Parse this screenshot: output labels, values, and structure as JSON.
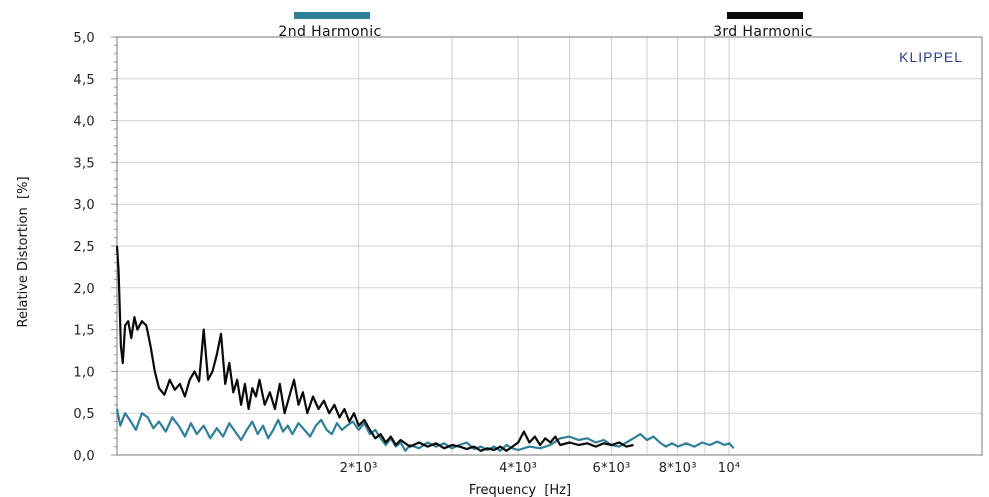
{
  "chart_data": {
    "type": "line",
    "title": "",
    "brand": "KLIPPEL",
    "xlabel": "Frequency  [Hz]",
    "ylabel": "Relative Distortion  [%]",
    "xscale": "log",
    "xlim": [
      700,
      30000
    ],
    "ylim": [
      0,
      5
    ],
    "grid": true,
    "legend_position": "top",
    "y_ticks": [
      {
        "value": 0.0,
        "label": "0,0"
      },
      {
        "value": 0.5,
        "label": "0,5"
      },
      {
        "value": 1.0,
        "label": "1,0"
      },
      {
        "value": 1.5,
        "label": "1,5"
      },
      {
        "value": 2.0,
        "label": "2,0"
      },
      {
        "value": 2.5,
        "label": "2,5"
      },
      {
        "value": 3.0,
        "label": "3,0"
      },
      {
        "value": 3.5,
        "label": "3,5"
      },
      {
        "value": 4.0,
        "label": "4,0"
      },
      {
        "value": 4.5,
        "label": "4,5"
      },
      {
        "value": 5.0,
        "label": "5,0"
      }
    ],
    "x_ticks": [
      {
        "value": 2000,
        "label": "2*10³"
      },
      {
        "value": 4000,
        "label": "4*10³"
      },
      {
        "value": 6000,
        "label": "6*10³"
      },
      {
        "value": 8000,
        "label": "8*10³"
      },
      {
        "value": 10000,
        "label": "10⁴"
      }
    ],
    "x_gridlines": [
      2000,
      3000,
      4000,
      5000,
      6000,
      7000,
      8000,
      9000,
      10000
    ],
    "series": [
      {
        "name": "2nd Harmonic",
        "color": "#2f7f98",
        "points": [
          [
            700,
            0.55
          ],
          [
            710,
            0.35
          ],
          [
            725,
            0.5
          ],
          [
            740,
            0.42
          ],
          [
            760,
            0.3
          ],
          [
            780,
            0.5
          ],
          [
            800,
            0.45
          ],
          [
            820,
            0.32
          ],
          [
            840,
            0.4
          ],
          [
            865,
            0.28
          ],
          [
            890,
            0.45
          ],
          [
            915,
            0.35
          ],
          [
            940,
            0.22
          ],
          [
            965,
            0.38
          ],
          [
            990,
            0.25
          ],
          [
            1020,
            0.35
          ],
          [
            1050,
            0.2
          ],
          [
            1080,
            0.32
          ],
          [
            1110,
            0.22
          ],
          [
            1140,
            0.38
          ],
          [
            1170,
            0.28
          ],
          [
            1200,
            0.18
          ],
          [
            1230,
            0.3
          ],
          [
            1260,
            0.4
          ],
          [
            1290,
            0.25
          ],
          [
            1320,
            0.35
          ],
          [
            1350,
            0.2
          ],
          [
            1380,
            0.3
          ],
          [
            1410,
            0.42
          ],
          [
            1440,
            0.28
          ],
          [
            1470,
            0.35
          ],
          [
            1500,
            0.25
          ],
          [
            1540,
            0.38
          ],
          [
            1580,
            0.3
          ],
          [
            1620,
            0.22
          ],
          [
            1660,
            0.35
          ],
          [
            1700,
            0.42
          ],
          [
            1740,
            0.3
          ],
          [
            1780,
            0.25
          ],
          [
            1820,
            0.38
          ],
          [
            1860,
            0.3
          ],
          [
            1900,
            0.35
          ],
          [
            1950,
            0.4
          ],
          [
            2000,
            0.3
          ],
          [
            2050,
            0.38
          ],
          [
            2100,
            0.25
          ],
          [
            2150,
            0.3
          ],
          [
            2200,
            0.2
          ],
          [
            2250,
            0.12
          ],
          [
            2300,
            0.2
          ],
          [
            2350,
            0.1
          ],
          [
            2400,
            0.15
          ],
          [
            2450,
            0.05
          ],
          [
            2500,
            0.12
          ],
          [
            2600,
            0.08
          ],
          [
            2700,
            0.15
          ],
          [
            2800,
            0.1
          ],
          [
            2900,
            0.14
          ],
          [
            3000,
            0.08
          ],
          [
            3100,
            0.12
          ],
          [
            3200,
            0.15
          ],
          [
            3300,
            0.07
          ],
          [
            3400,
            0.1
          ],
          [
            3500,
            0.06
          ],
          [
            3600,
            0.1
          ],
          [
            3700,
            0.05
          ],
          [
            3800,
            0.12
          ],
          [
            3900,
            0.08
          ],
          [
            4000,
            0.06
          ],
          [
            4200,
            0.1
          ],
          [
            4400,
            0.08
          ],
          [
            4600,
            0.12
          ],
          [
            4800,
            0.2
          ],
          [
            5000,
            0.22
          ],
          [
            5200,
            0.18
          ],
          [
            5400,
            0.2
          ],
          [
            5600,
            0.15
          ],
          [
            5800,
            0.18
          ],
          [
            6000,
            0.12
          ],
          [
            6200,
            0.1
          ],
          [
            6400,
            0.15
          ],
          [
            6600,
            0.2
          ],
          [
            6800,
            0.25
          ],
          [
            7000,
            0.18
          ],
          [
            7200,
            0.22
          ],
          [
            7400,
            0.15
          ],
          [
            7600,
            0.1
          ],
          [
            7800,
            0.14
          ],
          [
            8000,
            0.1
          ],
          [
            8300,
            0.14
          ],
          [
            8600,
            0.1
          ],
          [
            8900,
            0.15
          ],
          [
            9200,
            0.12
          ],
          [
            9500,
            0.16
          ],
          [
            9800,
            0.12
          ],
          [
            10000,
            0.14
          ],
          [
            10200,
            0.08
          ]
        ]
      },
      {
        "name": "3rd Harmonic",
        "color": "#0a0a0a",
        "points": [
          [
            700,
            2.5
          ],
          [
            705,
            2.2
          ],
          [
            712,
            1.3
          ],
          [
            718,
            1.1
          ],
          [
            725,
            1.55
          ],
          [
            735,
            1.6
          ],
          [
            745,
            1.4
          ],
          [
            755,
            1.65
          ],
          [
            765,
            1.5
          ],
          [
            780,
            1.6
          ],
          [
            795,
            1.55
          ],
          [
            810,
            1.3
          ],
          [
            825,
            1.0
          ],
          [
            840,
            0.8
          ],
          [
            860,
            0.72
          ],
          [
            880,
            0.9
          ],
          [
            900,
            0.78
          ],
          [
            920,
            0.85
          ],
          [
            940,
            0.7
          ],
          [
            960,
            0.9
          ],
          [
            980,
            1.0
          ],
          [
            1000,
            0.88
          ],
          [
            1020,
            1.5
          ],
          [
            1040,
            0.9
          ],
          [
            1060,
            1.0
          ],
          [
            1080,
            1.2
          ],
          [
            1100,
            1.45
          ],
          [
            1120,
            0.85
          ],
          [
            1140,
            1.1
          ],
          [
            1160,
            0.75
          ],
          [
            1180,
            0.9
          ],
          [
            1200,
            0.6
          ],
          [
            1220,
            0.85
          ],
          [
            1240,
            0.55
          ],
          [
            1260,
            0.8
          ],
          [
            1280,
            0.7
          ],
          [
            1300,
            0.9
          ],
          [
            1330,
            0.6
          ],
          [
            1360,
            0.75
          ],
          [
            1390,
            0.55
          ],
          [
            1420,
            0.85
          ],
          [
            1450,
            0.5
          ],
          [
            1480,
            0.7
          ],
          [
            1510,
            0.9
          ],
          [
            1540,
            0.6
          ],
          [
            1570,
            0.75
          ],
          [
            1600,
            0.5
          ],
          [
            1640,
            0.7
          ],
          [
            1680,
            0.55
          ],
          [
            1720,
            0.65
          ],
          [
            1760,
            0.5
          ],
          [
            1800,
            0.6
          ],
          [
            1840,
            0.45
          ],
          [
            1880,
            0.55
          ],
          [
            1920,
            0.4
          ],
          [
            1960,
            0.5
          ],
          [
            2000,
            0.35
          ],
          [
            2050,
            0.42
          ],
          [
            2100,
            0.3
          ],
          [
            2150,
            0.2
          ],
          [
            2200,
            0.25
          ],
          [
            2250,
            0.15
          ],
          [
            2300,
            0.22
          ],
          [
            2350,
            0.12
          ],
          [
            2400,
            0.18
          ],
          [
            2500,
            0.1
          ],
          [
            2600,
            0.15
          ],
          [
            2700,
            0.1
          ],
          [
            2800,
            0.14
          ],
          [
            2900,
            0.08
          ],
          [
            3000,
            0.12
          ],
          [
            3100,
            0.1
          ],
          [
            3200,
            0.07
          ],
          [
            3300,
            0.1
          ],
          [
            3400,
            0.05
          ],
          [
            3500,
            0.08
          ],
          [
            3600,
            0.06
          ],
          [
            3700,
            0.1
          ],
          [
            3800,
            0.05
          ],
          [
            3900,
            0.1
          ],
          [
            4000,
            0.15
          ],
          [
            4100,
            0.28
          ],
          [
            4200,
            0.15
          ],
          [
            4300,
            0.22
          ],
          [
            4400,
            0.12
          ],
          [
            4500,
            0.2
          ],
          [
            4600,
            0.15
          ],
          [
            4700,
            0.22
          ],
          [
            4800,
            0.12
          ],
          [
            5000,
            0.15
          ],
          [
            5200,
            0.12
          ],
          [
            5400,
            0.14
          ],
          [
            5600,
            0.1
          ],
          [
            5800,
            0.14
          ],
          [
            6000,
            0.12
          ],
          [
            6200,
            0.15
          ],
          [
            6400,
            0.1
          ],
          [
            6600,
            0.12
          ]
        ]
      }
    ]
  }
}
